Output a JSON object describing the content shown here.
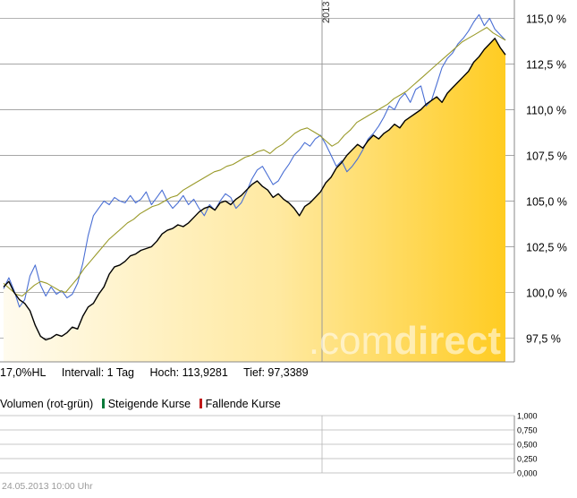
{
  "chart_data": {
    "type": "line",
    "year_marker": "2013",
    "y_ticks": [
      "115,0 %",
      "112,5 %",
      "110,0 %",
      "107,5 %",
      "105,0 %",
      "102,5 %",
      "100,0 %",
      "97,5 %"
    ],
    "ylim": [
      96.2,
      116.0
    ],
    "series": [
      {
        "color": "#000000",
        "style": "main-area",
        "values": [
          100.3,
          100.6,
          100.0,
          99.6,
          99.4,
          99.0,
          98.2,
          97.6,
          97.4,
          97.5,
          97.7,
          97.6,
          97.8,
          98.1,
          98.0,
          98.7,
          99.2,
          99.4,
          99.9,
          100.3,
          101.0,
          101.4,
          101.5,
          101.7,
          102.0,
          102.1,
          102.3,
          102.4,
          102.5,
          102.8,
          103.2,
          103.4,
          103.5,
          103.7,
          103.6,
          103.8,
          104.1,
          104.4,
          104.6,
          104.7,
          104.5,
          104.9,
          105.0,
          104.8,
          105.1,
          105.3,
          105.6,
          105.9,
          106.1,
          105.8,
          105.6,
          105.2,
          105.4,
          105.1,
          104.9,
          104.6,
          104.2,
          104.7,
          104.9,
          105.2,
          105.5,
          106.0,
          106.3,
          106.8,
          107.1,
          107.5,
          107.8,
          108.1,
          107.9,
          108.3,
          108.6,
          108.4,
          108.7,
          108.9,
          109.2,
          109.0,
          109.4,
          109.6,
          109.8,
          110.0,
          110.3,
          110.5,
          110.7,
          110.4,
          110.9,
          111.2,
          111.5,
          111.8,
          112.1,
          112.6,
          112.9,
          113.3,
          113.6,
          113.9,
          113.4,
          113.0
        ]
      },
      {
        "color": "#4a6fd4",
        "style": "line",
        "values": [
          100.2,
          100.8,
          100.1,
          99.2,
          99.6,
          100.9,
          101.5,
          100.4,
          99.8,
          100.3,
          99.9,
          100.1,
          99.7,
          99.9,
          100.5,
          101.6,
          103.1,
          104.2,
          104.6,
          105.0,
          104.8,
          105.2,
          105.0,
          104.9,
          105.3,
          104.9,
          105.1,
          105.5,
          104.8,
          105.2,
          105.6,
          105.0,
          104.6,
          104.9,
          105.3,
          104.8,
          105.1,
          104.6,
          104.2,
          104.8,
          104.5,
          105.0,
          105.4,
          105.2,
          104.6,
          104.9,
          105.5,
          106.2,
          106.7,
          106.9,
          106.4,
          105.9,
          106.1,
          106.6,
          107.0,
          107.5,
          107.8,
          108.2,
          108.0,
          108.4,
          108.6,
          108.1,
          107.5,
          106.9,
          107.2,
          106.6,
          106.9,
          107.3,
          107.8,
          108.4,
          108.7,
          109.1,
          109.6,
          110.2,
          110.0,
          110.6,
          110.9,
          110.4,
          111.1,
          111.3,
          110.2,
          110.5,
          111.4,
          112.3,
          112.8,
          113.1,
          113.6,
          113.9,
          114.3,
          114.8,
          115.2,
          114.6,
          115.0,
          114.4,
          114.1,
          113.8
        ]
      },
      {
        "color": "#9a9a2a",
        "style": "line",
        "values": [
          100.5,
          100.2,
          99.9,
          99.8,
          100.1,
          100.4,
          100.6,
          100.5,
          100.3,
          100.1,
          100.0,
          100.4,
          100.8,
          101.3,
          101.7,
          102.1,
          102.5,
          102.9,
          103.2,
          103.5,
          103.8,
          104.0,
          104.3,
          104.5,
          104.7,
          104.8,
          105.0,
          105.2,
          105.3,
          105.6,
          105.8,
          106.0,
          106.2,
          106.4,
          106.6,
          106.7,
          106.9,
          107.0,
          107.2,
          107.4,
          107.5,
          107.7,
          107.8,
          107.6,
          107.9,
          108.1,
          108.4,
          108.7,
          108.9,
          109.0,
          108.8,
          108.6,
          108.3,
          108.0,
          108.2,
          108.6,
          108.9,
          109.3,
          109.5,
          109.7,
          109.9,
          110.1,
          110.3,
          110.6,
          110.8,
          111.0,
          111.3,
          111.6,
          111.9,
          112.2,
          112.5,
          112.8,
          113.1,
          113.4,
          113.7,
          113.9,
          114.1,
          114.3,
          114.5,
          114.2,
          114.0,
          113.8
        ]
      }
    ]
  },
  "info": {
    "range": "17,0%HL",
    "interval": "Intervall: 1 Tag",
    "high": "Hoch: 113,9281",
    "low": "Tief: 97,3389"
  },
  "volume": {
    "title": "Volumen (rot-grün)",
    "rising": "Steigende Kurse",
    "falling": "Fallende Kurse",
    "rising_color": "#0a7a3a",
    "falling_color": "#c01818",
    "ticks": [
      "1,000",
      "0,750",
      "0,500",
      "0,250",
      "0,000"
    ]
  },
  "watermark": {
    "prefix": ".com",
    "suffix": "direct"
  },
  "footer": {
    "timestamp": "24.05.2013 10:00 Uhr"
  },
  "colors": {
    "area_top": "#ffcf2e",
    "area_light": "#fff6d8",
    "grid": "#9a9a9a"
  }
}
